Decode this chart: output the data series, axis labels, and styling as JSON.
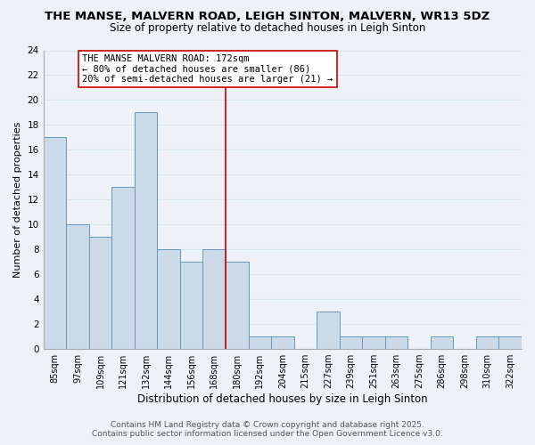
{
  "title": "THE MANSE, MALVERN ROAD, LEIGH SINTON, MALVERN, WR13 5DZ",
  "subtitle": "Size of property relative to detached houses in Leigh Sinton",
  "xlabel": "Distribution of detached houses by size in Leigh Sinton",
  "ylabel": "Number of detached properties",
  "categories": [
    "85sqm",
    "97sqm",
    "109sqm",
    "121sqm",
    "132sqm",
    "144sqm",
    "156sqm",
    "168sqm",
    "180sqm",
    "192sqm",
    "204sqm",
    "215sqm",
    "227sqm",
    "239sqm",
    "251sqm",
    "263sqm",
    "275sqm",
    "286sqm",
    "298sqm",
    "310sqm",
    "322sqm"
  ],
  "values": [
    17,
    10,
    9,
    13,
    19,
    8,
    7,
    8,
    7,
    1,
    1,
    0,
    3,
    1,
    1,
    1,
    0,
    1,
    0,
    1,
    1
  ],
  "bar_color": "#ccd9e8",
  "bar_edge_color": "#6699bb",
  "grid_color": "#d8e4ee",
  "background_color": "#eef2f7",
  "vline_color": "#cc0000",
  "annotation_text": "THE MANSE MALVERN ROAD: 172sqm\n← 80% of detached houses are smaller (86)\n20% of semi-detached houses are larger (21) →",
  "annotation_box_color": "#ffffff",
  "annotation_box_edge": "#cc0000",
  "ylim": [
    0,
    24
  ],
  "yticks": [
    0,
    2,
    4,
    6,
    8,
    10,
    12,
    14,
    16,
    18,
    20,
    22,
    24
  ],
  "footer_line1": "Contains HM Land Registry data © Crown copyright and database right 2025.",
  "footer_line2": "Contains public sector information licensed under the Open Government Licence v3.0."
}
